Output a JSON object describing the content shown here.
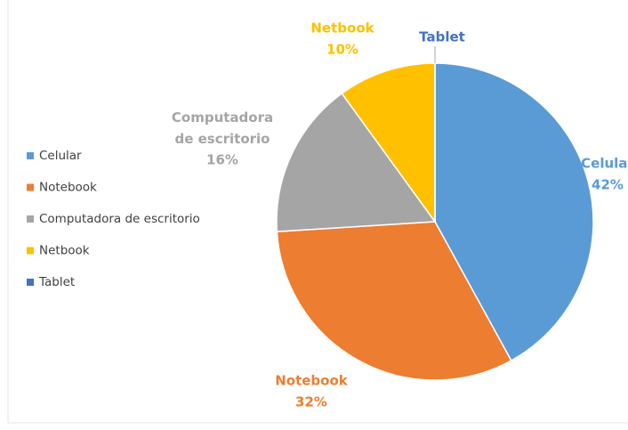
{
  "chart_data": {
    "type": "pie",
    "categories": [
      "Celular",
      "Notebook",
      "Computadora de escritorio",
      "Netbook",
      "Tablet"
    ],
    "values": [
      42,
      32,
      16,
      10,
      0
    ],
    "value_labels": [
      "42%",
      "32%",
      "16%",
      "10%",
      null
    ],
    "colors": [
      "#5b9bd5",
      "#ed7d31",
      "#a5a5a5",
      "#ffc000",
      "#4472c4"
    ],
    "legend": "left"
  }
}
